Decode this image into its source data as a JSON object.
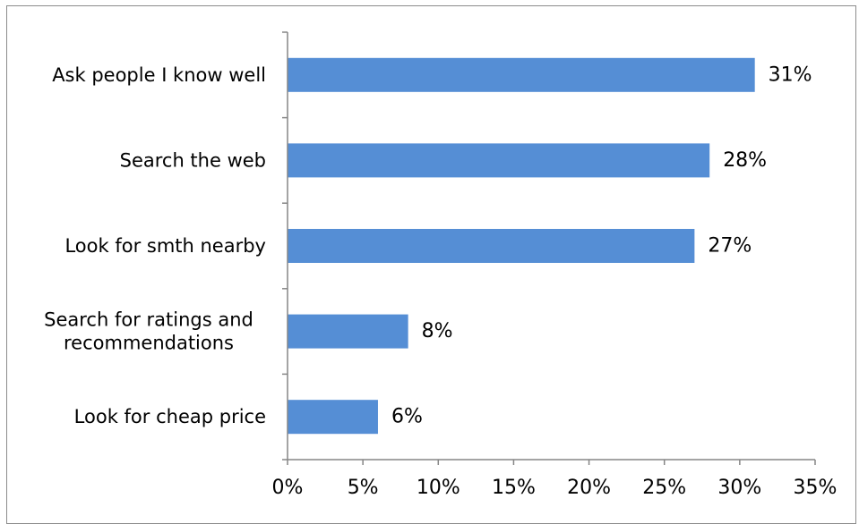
{
  "chart_data": {
    "type": "bar",
    "orientation": "horizontal",
    "categories": [
      [
        "Ask people I know well"
      ],
      [
        "Search the web"
      ],
      [
        "Look for smth nearby"
      ],
      [
        "Search for ratings and",
        "recommendations"
      ],
      [
        "Look for cheap price"
      ]
    ],
    "values": [
      31,
      28,
      27,
      8,
      6
    ],
    "data_labels": [
      "31%",
      "28%",
      "27%",
      "8%",
      "6%"
    ],
    "x_ticks": [
      "0%",
      "5%",
      "10%",
      "15%",
      "20%",
      "25%",
      "30%",
      "35%"
    ],
    "xlim": [
      0,
      35
    ],
    "title": "",
    "xlabel": "",
    "ylabel": "",
    "grid": false,
    "legend": "none",
    "colors": {
      "bar": "#558ed5",
      "axis": "#868686",
      "text": "#000000"
    }
  }
}
